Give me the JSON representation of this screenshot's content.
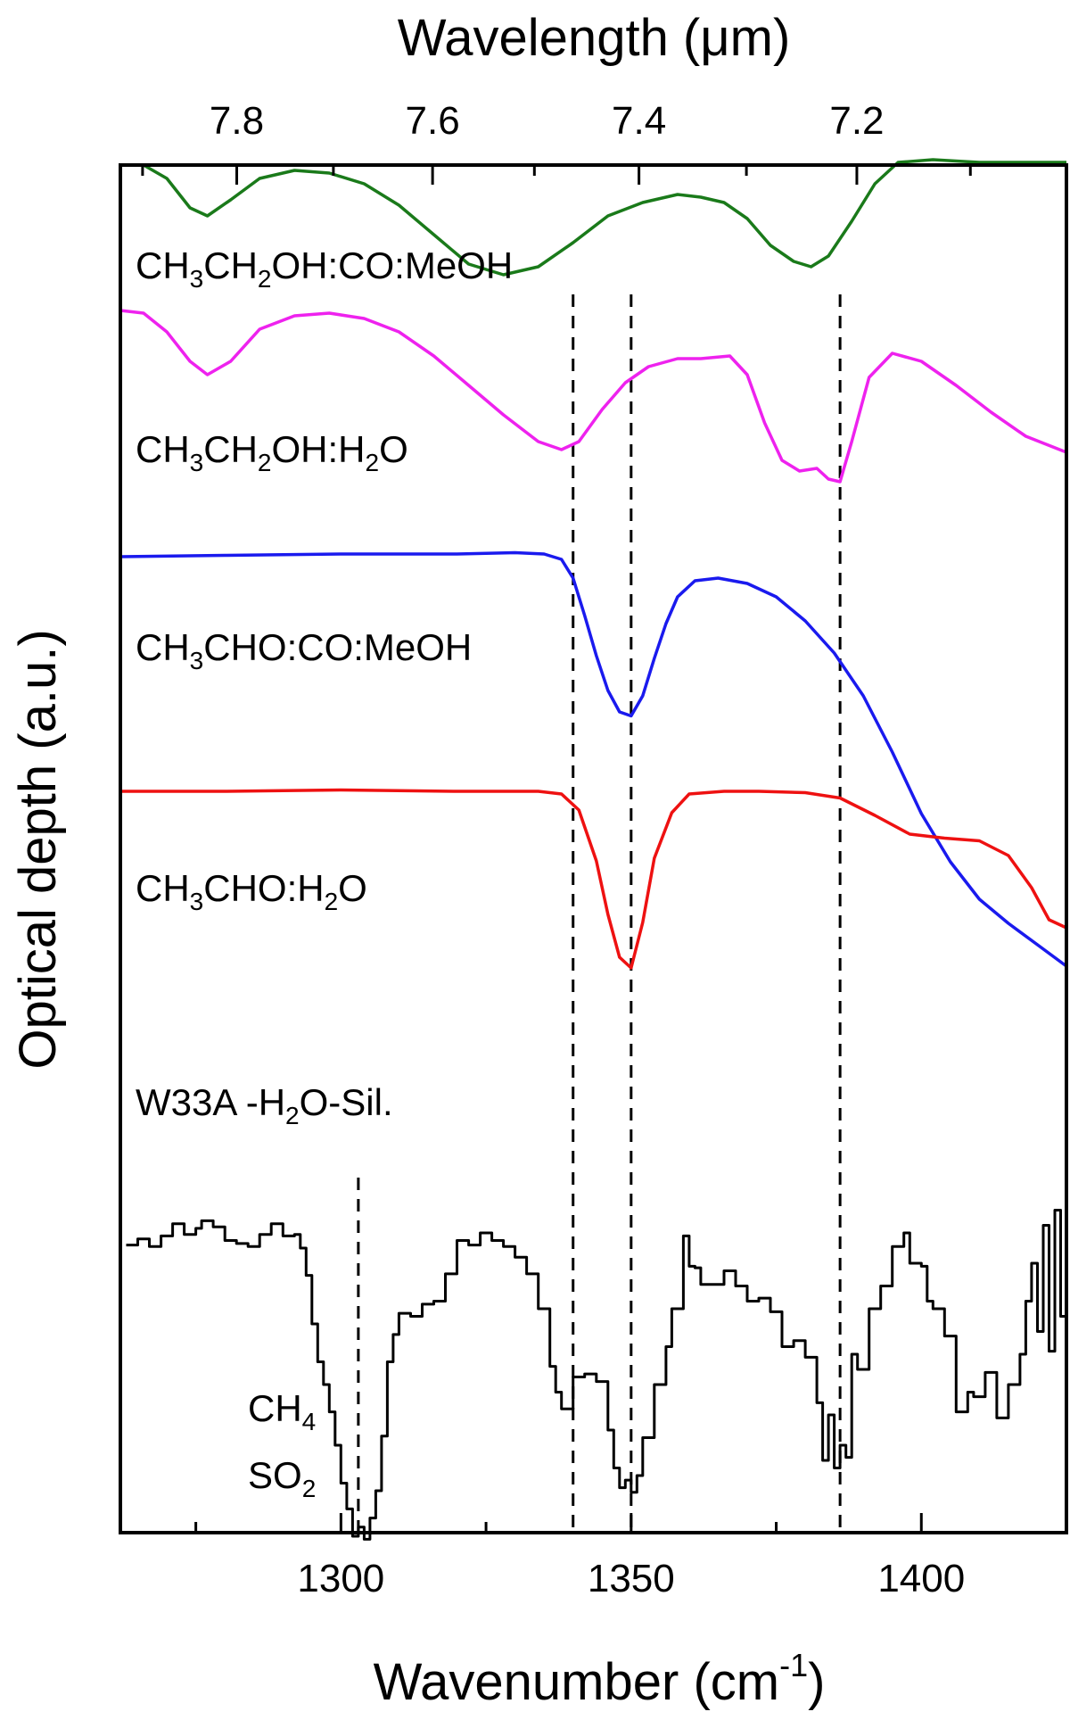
{
  "chart_data": {
    "type": "line",
    "xlabel": "Wavenumber (cm",
    "xlabel_sup": "-1",
    "xlabel_close": ")",
    "x2label": "Wavelength (μm)",
    "ylabel": "Optical depth (a.u.)",
    "xlim": [
      1262,
      1425
    ],
    "x_ticks": [
      1300,
      1350,
      1400
    ],
    "x_tick_labels": [
      "1300",
      "1350",
      "1400"
    ],
    "x2_ticks_um": [
      7.8,
      7.6,
      7.4,
      7.2
    ],
    "x2_tick_labels": [
      "7.8",
      "7.6",
      "7.4",
      "7.2"
    ],
    "y_ticks_shown": false,
    "grid": false,
    "legend": "none",
    "vlines_full": [
      1340,
      1350,
      1386
    ],
    "vline_ch4": 1303,
    "series": [
      {
        "name": "CH3CH2OH:CO:MeOH",
        "label_parts": [
          [
            "CH",
            ""
          ],
          [
            "3",
            "sub"
          ],
          [
            "CH",
            ""
          ],
          [
            "2",
            "sub"
          ],
          [
            "OH:CO:MeOH",
            ""
          ]
        ],
        "color": "#1a7a1a",
        "step": false,
        "points": [
          [
            1262,
            5.5
          ],
          [
            1266,
            5.5
          ],
          [
            1270,
            5.0
          ],
          [
            1274,
            3.9
          ],
          [
            1277,
            3.6
          ],
          [
            1281,
            4.2
          ],
          [
            1286,
            5.0
          ],
          [
            1292,
            5.3
          ],
          [
            1298,
            5.2
          ],
          [
            1304,
            4.8
          ],
          [
            1310,
            4.0
          ],
          [
            1316,
            2.9
          ],
          [
            1322,
            1.8
          ],
          [
            1328,
            1.4
          ],
          [
            1334,
            1.7
          ],
          [
            1340,
            2.6
          ],
          [
            1346,
            3.6
          ],
          [
            1352,
            4.1
          ],
          [
            1358,
            4.4
          ],
          [
            1362,
            4.3
          ],
          [
            1366,
            4.1
          ],
          [
            1370,
            3.5
          ],
          [
            1374,
            2.5
          ],
          [
            1378,
            1.9
          ],
          [
            1381,
            1.7
          ],
          [
            1384,
            2.1
          ],
          [
            1388,
            3.4
          ],
          [
            1392,
            4.8
          ],
          [
            1396,
            5.6
          ],
          [
            1402,
            5.7
          ],
          [
            1410,
            5.6
          ],
          [
            1418,
            5.6
          ],
          [
            1425,
            5.6
          ]
        ]
      },
      {
        "name": "CH3CH2OH:H2O",
        "label_parts": [
          [
            "CH",
            ""
          ],
          [
            "3",
            "sub"
          ],
          [
            "CH",
            ""
          ],
          [
            "2",
            "sub"
          ],
          [
            "OH:H",
            ""
          ],
          [
            "2",
            "sub"
          ],
          [
            "O",
            ""
          ]
        ],
        "color": "#ee22ee",
        "step": false,
        "points": [
          [
            1262,
            6.5
          ],
          [
            1266,
            6.4
          ],
          [
            1270,
            5.7
          ],
          [
            1274,
            4.6
          ],
          [
            1277,
            4.1
          ],
          [
            1281,
            4.6
          ],
          [
            1286,
            5.8
          ],
          [
            1292,
            6.3
          ],
          [
            1298,
            6.4
          ],
          [
            1304,
            6.2
          ],
          [
            1310,
            5.7
          ],
          [
            1316,
            4.8
          ],
          [
            1322,
            3.7
          ],
          [
            1328,
            2.6
          ],
          [
            1334,
            1.6
          ],
          [
            1338,
            1.3
          ],
          [
            1341,
            1.6
          ],
          [
            1345,
            2.8
          ],
          [
            1349,
            3.8
          ],
          [
            1353,
            4.4
          ],
          [
            1358,
            4.7
          ],
          [
            1362,
            4.7
          ],
          [
            1367,
            4.8
          ],
          [
            1370,
            4.1
          ],
          [
            1373,
            2.3
          ],
          [
            1376,
            0.9
          ],
          [
            1379,
            0.5
          ],
          [
            1382,
            0.6
          ],
          [
            1384,
            0.2
          ],
          [
            1386,
            0.1
          ],
          [
            1388,
            1.6
          ],
          [
            1391,
            4.0
          ],
          [
            1395,
            4.9
          ],
          [
            1400,
            4.6
          ],
          [
            1406,
            3.7
          ],
          [
            1412,
            2.7
          ],
          [
            1418,
            1.8
          ],
          [
            1425,
            1.2
          ]
        ]
      },
      {
        "name": "CH3CHO:CO:MeOH",
        "label_parts": [
          [
            "CH",
            ""
          ],
          [
            "3",
            "sub"
          ],
          [
            "CHO:CO:MeOH",
            ""
          ]
        ],
        "color": "#1a1aee",
        "step": false,
        "points": [
          [
            1262,
            5.4
          ],
          [
            1280,
            5.45
          ],
          [
            1300,
            5.5
          ],
          [
            1320,
            5.5
          ],
          [
            1330,
            5.55
          ],
          [
            1335,
            5.5
          ],
          [
            1338,
            5.3
          ],
          [
            1340,
            4.6
          ],
          [
            1342,
            3.2
          ],
          [
            1344,
            1.7
          ],
          [
            1346,
            0.4
          ],
          [
            1348,
            -0.4
          ],
          [
            1350,
            -0.55
          ],
          [
            1352,
            0.2
          ],
          [
            1354,
            1.6
          ],
          [
            1356,
            2.9
          ],
          [
            1358,
            3.9
          ],
          [
            1361,
            4.5
          ],
          [
            1365,
            4.6
          ],
          [
            1370,
            4.4
          ],
          [
            1375,
            3.9
          ],
          [
            1380,
            3.0
          ],
          [
            1385,
            1.8
          ],
          [
            1390,
            0.2
          ],
          [
            1395,
            -1.9
          ],
          [
            1400,
            -4.2
          ],
          [
            1405,
            -6.0
          ],
          [
            1410,
            -7.4
          ],
          [
            1415,
            -8.3
          ],
          [
            1420,
            -9.1
          ],
          [
            1425,
            -9.9
          ]
        ]
      },
      {
        "name": "CH3CHO:H2O",
        "label_parts": [
          [
            "CH",
            ""
          ],
          [
            "3",
            "sub"
          ],
          [
            "CHO:H",
            ""
          ],
          [
            "2",
            "sub"
          ],
          [
            "O",
            ""
          ]
        ],
        "color": "#ee1111",
        "step": false,
        "points": [
          [
            1262,
            5.5
          ],
          [
            1280,
            5.5
          ],
          [
            1300,
            5.55
          ],
          [
            1320,
            5.5
          ],
          [
            1334,
            5.5
          ],
          [
            1338,
            5.4
          ],
          [
            1341,
            4.8
          ],
          [
            1344,
            2.9
          ],
          [
            1346,
            0.9
          ],
          [
            1348,
            -0.7
          ],
          [
            1350,
            -1.1
          ],
          [
            1352,
            0.6
          ],
          [
            1354,
            3.0
          ],
          [
            1357,
            4.7
          ],
          [
            1360,
            5.4
          ],
          [
            1366,
            5.5
          ],
          [
            1372,
            5.5
          ],
          [
            1380,
            5.45
          ],
          [
            1386,
            5.25
          ],
          [
            1392,
            4.6
          ],
          [
            1398,
            3.9
          ],
          [
            1404,
            3.75
          ],
          [
            1410,
            3.65
          ],
          [
            1415,
            3.1
          ],
          [
            1419,
            1.9
          ],
          [
            1422,
            0.7
          ],
          [
            1425,
            0.4
          ]
        ]
      },
      {
        "name": "W33A -H2O-Sil.",
        "label_parts": [
          [
            "W33A -H",
            ""
          ],
          [
            "2",
            "sub"
          ],
          [
            "O-Sil.",
            ""
          ]
        ],
        "color": "#000000",
        "step": true,
        "points": [
          [
            1263,
            3.2
          ],
          [
            1265,
            3.6
          ],
          [
            1267,
            3.1
          ],
          [
            1269,
            3.8
          ],
          [
            1271,
            4.6
          ],
          [
            1273,
            3.9
          ],
          [
            1275,
            4.3
          ],
          [
            1276,
            4.8
          ],
          [
            1278,
            4.4
          ],
          [
            1280,
            3.5
          ],
          [
            1282,
            3.3
          ],
          [
            1284,
            3.1
          ],
          [
            1286,
            3.9
          ],
          [
            1288,
            4.6
          ],
          [
            1290,
            3.8
          ],
          [
            1292,
            3.9
          ],
          [
            1293,
            3.0
          ],
          [
            1294,
            1.2
          ],
          [
            1295,
            -2.0
          ],
          [
            1296,
            -4.5
          ],
          [
            1297,
            -6.0
          ],
          [
            1298,
            -7.8
          ],
          [
            1299,
            -10.0
          ],
          [
            1300,
            -12.5
          ],
          [
            1301,
            -14.2
          ],
          [
            1302,
            -16.0
          ],
          [
            1303,
            -15.4
          ],
          [
            1304,
            -16.2
          ],
          [
            1305,
            -14.8
          ],
          [
            1306,
            -13.0
          ],
          [
            1307,
            -9.4
          ],
          [
            1308,
            -4.5
          ],
          [
            1309,
            -2.7
          ],
          [
            1310,
            -1.3
          ],
          [
            1312,
            -1.5
          ],
          [
            1314,
            -0.7
          ],
          [
            1316,
            -0.5
          ],
          [
            1318,
            1.3
          ],
          [
            1320,
            3.5
          ],
          [
            1322,
            3.2
          ],
          [
            1324,
            4.0
          ],
          [
            1326,
            3.5
          ],
          [
            1328,
            3.1
          ],
          [
            1330,
            2.4
          ],
          [
            1332,
            1.3
          ],
          [
            1334,
            -1.0
          ],
          [
            1336,
            -4.8
          ],
          [
            1337,
            -6.5
          ],
          [
            1338,
            -7.6
          ],
          [
            1340,
            -5.5
          ],
          [
            1342,
            -5.3
          ],
          [
            1344,
            -5.8
          ],
          [
            1346,
            -9.0
          ],
          [
            1347,
            -11.5
          ],
          [
            1348,
            -12.8
          ],
          [
            1349,
            -12.3
          ],
          [
            1350,
            -13.1
          ],
          [
            1351,
            -12.0
          ],
          [
            1352,
            -9.5
          ],
          [
            1354,
            -6.0
          ],
          [
            1356,
            -3.5
          ],
          [
            1357,
            -1.0
          ],
          [
            1359,
            3.8
          ],
          [
            1360,
            1.8
          ],
          [
            1361,
            1.7
          ],
          [
            1362,
            0.6
          ],
          [
            1364,
            0.6
          ],
          [
            1366,
            1.5
          ],
          [
            1368,
            0.5
          ],
          [
            1370,
            -0.5
          ],
          [
            1372,
            -0.3
          ],
          [
            1374,
            -1.2
          ],
          [
            1376,
            -3.5
          ],
          [
            1378,
            -3.1
          ],
          [
            1380,
            -4.2
          ],
          [
            1382,
            -7.2
          ],
          [
            1383,
            -11.0
          ],
          [
            1384,
            -8.0
          ],
          [
            1385,
            -11.5
          ],
          [
            1386,
            -10.0
          ],
          [
            1387,
            -10.8
          ],
          [
            1388,
            -4.0
          ],
          [
            1389,
            -5.0
          ],
          [
            1391,
            -1.0
          ],
          [
            1393,
            0.5
          ],
          [
            1395,
            3.1
          ],
          [
            1397,
            4.0
          ],
          [
            1398,
            2.0
          ],
          [
            1400,
            1.8
          ],
          [
            1401,
            -0.5
          ],
          [
            1402,
            -1.0
          ],
          [
            1404,
            -2.8
          ],
          [
            1406,
            -7.8
          ],
          [
            1408,
            -6.5
          ],
          [
            1409,
            -6.8
          ],
          [
            1411,
            -5.2
          ],
          [
            1413,
            -8.2
          ],
          [
            1415,
            -6.0
          ],
          [
            1417,
            -4.0
          ],
          [
            1418,
            -0.5
          ],
          [
            1419,
            2.0
          ],
          [
            1420,
            -2.5
          ],
          [
            1421,
            4.5
          ],
          [
            1422,
            -3.8
          ],
          [
            1423,
            5.5
          ],
          [
            1424,
            -1.5
          ],
          [
            1425,
            6.5
          ]
        ]
      }
    ],
    "annotations": [
      {
        "parts": [
          [
            "CH",
            ""
          ],
          [
            "4",
            "sub"
          ]
        ]
      },
      {
        "parts": [
          [
            "SO",
            ""
          ],
          [
            "2",
            "sub"
          ]
        ]
      }
    ]
  }
}
